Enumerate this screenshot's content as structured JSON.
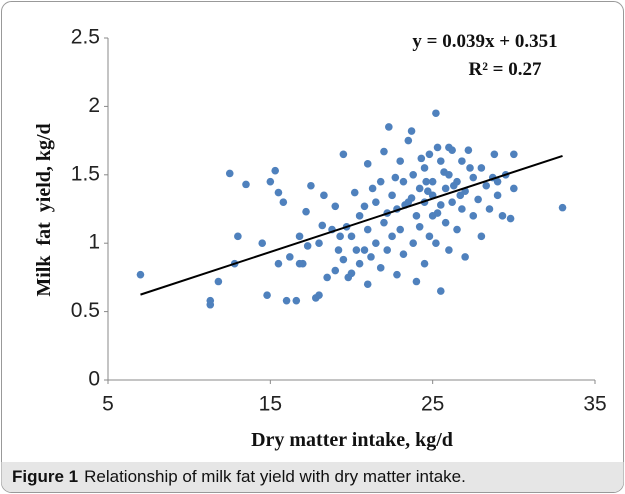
{
  "chart_data": {
    "type": "scatter",
    "x_label": "Dry matter intake, kg/d",
    "y_label": "Milk  fat  yield, kg/d",
    "annotations": [
      "y = 0.039x + 0.351",
      "R² = 0.27"
    ],
    "caption": {
      "label": "Figure 1",
      "text": "Relationship of milk fat yield with dry matter intake."
    },
    "color": "#4f81bd",
    "grid": false,
    "xlim": [
      5,
      35
    ],
    "xticks": [
      5,
      15,
      25,
      35
    ],
    "ylim": [
      0,
      2.5
    ],
    "yticks": [
      0,
      0.5,
      1,
      1.5,
      2,
      2.5
    ],
    "x": [
      7,
      11.3,
      11.3,
      11.8,
      12.5,
      12.8,
      13,
      13.5,
      14.5,
      14.8,
      15,
      15.3,
      15.5,
      15.5,
      15.8,
      16,
      16.2,
      16.6,
      16.8,
      17,
      17.2,
      17.5,
      17.8,
      18,
      18,
      18.3,
      18.5,
      18.8,
      19,
      19,
      19.2,
      19.5,
      19.5,
      19.8,
      20,
      20,
      20.2,
      20.5,
      20.5,
      20.8,
      21,
      21,
      21,
      21.2,
      21.5,
      21.5,
      21.8,
      21.8,
      22,
      22,
      22.2,
      22.5,
      22.5,
      22.8,
      22.8,
      23,
      23,
      23.2,
      23.2,
      23.5,
      23.5,
      23.8,
      23.8,
      24,
      24,
      24.2,
      24.2,
      24.5,
      24.5,
      24.5,
      24.8,
      24.8,
      25,
      25,
      25,
      25.2,
      25.2,
      25.5,
      25.5,
      25.5,
      25.8,
      25.8,
      26,
      26,
      26,
      26.2,
      26.5,
      26.5,
      26.8,
      26.8,
      27,
      27,
      27.2,
      27.5,
      27.5,
      27.8,
      28,
      28,
      28.3,
      28.5,
      28.8,
      29,
      29,
      29.3,
      29.5,
      29.8,
      30,
      30,
      33,
      22.3,
      23.7,
      25.3,
      26.2,
      24.3,
      20.8,
      19.7,
      18.2,
      17.3,
      16.8,
      22.7,
      23.3,
      24.7,
      25.7,
      26.7,
      27.3,
      28.7,
      21.3,
      20.3,
      19.3,
      22.2,
      23.7,
      24.6,
      25.3,
      26.3
    ],
    "y": [
      0.77,
      0.55,
      0.58,
      0.72,
      1.51,
      0.85,
      1.05,
      1.43,
      1.0,
      0.62,
      1.45,
      1.53,
      1.37,
      0.85,
      1.3,
      0.58,
      0.9,
      0.58,
      1.05,
      0.85,
      1.23,
      1.42,
      0.6,
      0.62,
      1.0,
      1.35,
      0.75,
      1.1,
      0.8,
      1.27,
      0.95,
      1.65,
      0.88,
      0.75,
      1.05,
      0.78,
      1.37,
      0.85,
      1.2,
      0.95,
      1.58,
      1.1,
      0.7,
      0.9,
      1.3,
      1.0,
      1.45,
      0.82,
      1.15,
      1.67,
      0.95,
      1.35,
      1.05,
      1.25,
      0.77,
      1.6,
      1.1,
      1.45,
      0.92,
      1.3,
      1.75,
      1.0,
      1.5,
      1.2,
      0.72,
      1.4,
      1.12,
      1.55,
      0.85,
      1.3,
      1.65,
      1.05,
      1.35,
      1.45,
      1.2,
      1.95,
      1.0,
      1.6,
      1.28,
      0.65,
      1.4,
      1.15,
      1.5,
      1.7,
      0.95,
      1.3,
      1.45,
      1.1,
      1.6,
      1.25,
      1.38,
      0.9,
      1.68,
      1.2,
      1.48,
      1.32,
      1.55,
      1.05,
      1.42,
      1.25,
      1.65,
      1.35,
      1.45,
      1.2,
      1.5,
      1.18,
      1.65,
      1.4,
      1.26,
      1.85,
      1.82,
      1.7,
      1.68,
      1.62,
      1.27,
      1.12,
      1.13,
      0.98,
      0.85,
      1.48,
      1.28,
      1.38,
      1.52,
      1.35,
      1.55,
      1.48,
      1.4,
      0.95,
      1.05,
      1.22,
      1.33,
      1.45,
      1.22,
      1.42
    ],
    "trendline": {
      "x": [
        7,
        33
      ],
      "y": [
        0.624,
        1.638
      ]
    }
  }
}
